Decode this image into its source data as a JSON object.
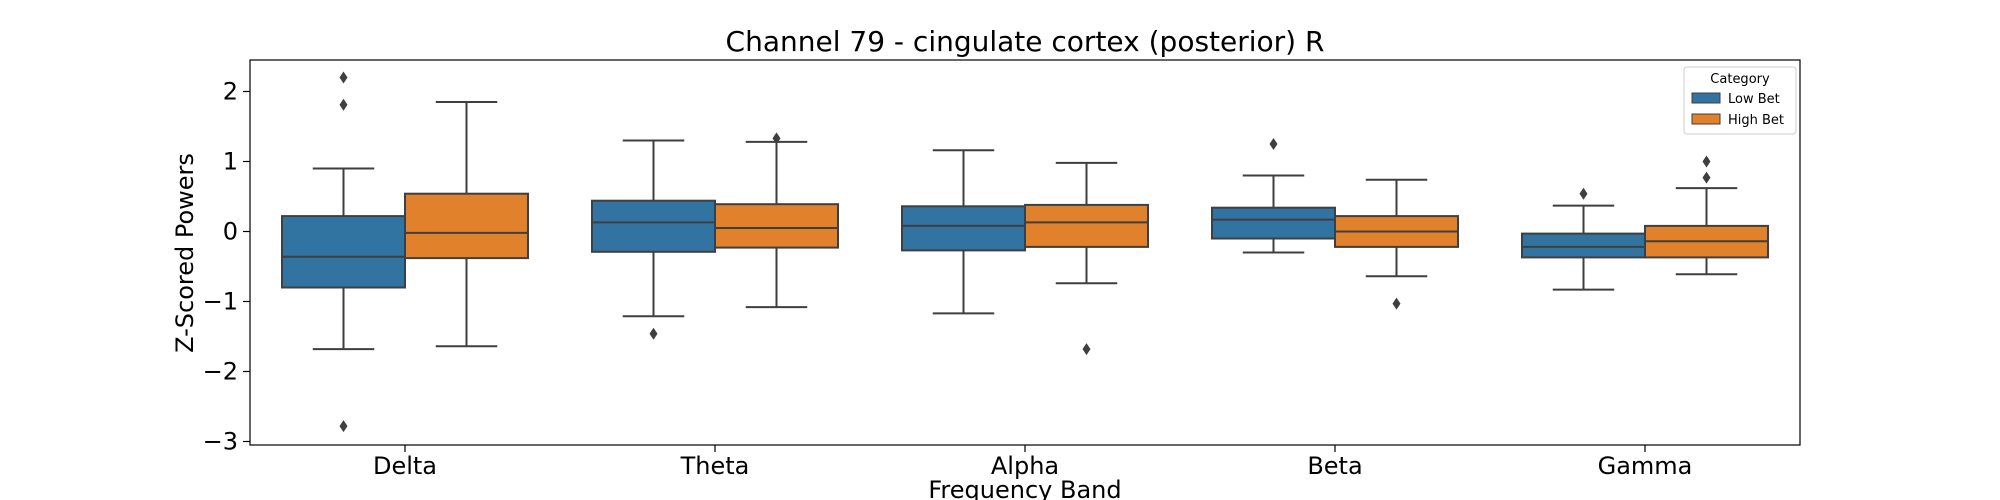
{
  "chart_data": {
    "type": "box",
    "title": "Channel 79 - cingulate cortex (posterior) R",
    "xlabel": "Frequency Band",
    "ylabel": "Z-Scored Powers",
    "ylim": [
      -3.05,
      2.45
    ],
    "yticks": [
      -3,
      -2,
      -1,
      0,
      1,
      2
    ],
    "ytick_labels": [
      "−3",
      "−2",
      "−1",
      "0",
      "1",
      "2"
    ],
    "categories": [
      "Delta",
      "Theta",
      "Alpha",
      "Beta",
      "Gamma"
    ],
    "grid": false,
    "legend": {
      "title": "Category",
      "position": "top-right"
    },
    "series": [
      {
        "name": "Low Bet",
        "color": "#3274a1",
        "boxes": [
          {
            "whisker_low": -1.68,
            "q1": -0.8,
            "median": -0.36,
            "q3": 0.22,
            "whisker_high": 0.9,
            "outliers": [
              2.2,
              1.81,
              -2.78
            ]
          },
          {
            "whisker_low": -1.21,
            "q1": -0.29,
            "median": 0.13,
            "q3": 0.44,
            "whisker_high": 1.3,
            "outliers": [
              -1.46
            ]
          },
          {
            "whisker_low": -1.17,
            "q1": -0.27,
            "median": 0.08,
            "q3": 0.36,
            "whisker_high": 1.16,
            "outliers": []
          },
          {
            "whisker_low": -0.3,
            "q1": -0.1,
            "median": 0.17,
            "q3": 0.34,
            "whisker_high": 0.8,
            "outliers": [
              1.25
            ]
          },
          {
            "whisker_low": -0.83,
            "q1": -0.37,
            "median": -0.22,
            "q3": -0.03,
            "whisker_high": 0.37,
            "outliers": [
              0.54
            ]
          }
        ]
      },
      {
        "name": "High Bet",
        "color": "#e1812c",
        "boxes": [
          {
            "whisker_low": -1.64,
            "q1": -0.38,
            "median": -0.02,
            "q3": 0.54,
            "whisker_high": 1.85,
            "outliers": []
          },
          {
            "whisker_low": -1.08,
            "q1": -0.23,
            "median": 0.05,
            "q3": 0.39,
            "whisker_high": 1.28,
            "outliers": [
              1.33
            ]
          },
          {
            "whisker_low": -0.74,
            "q1": -0.22,
            "median": 0.13,
            "q3": 0.38,
            "whisker_high": 0.98,
            "outliers": [
              -1.68
            ]
          },
          {
            "whisker_low": -0.64,
            "q1": -0.22,
            "median": 0.0,
            "q3": 0.22,
            "whisker_high": 0.74,
            "outliers": [
              -1.03
            ]
          },
          {
            "whisker_low": -0.61,
            "q1": -0.37,
            "median": -0.14,
            "q3": 0.08,
            "whisker_high": 0.62,
            "outliers": [
              1.0,
              0.77
            ]
          }
        ]
      }
    ]
  }
}
